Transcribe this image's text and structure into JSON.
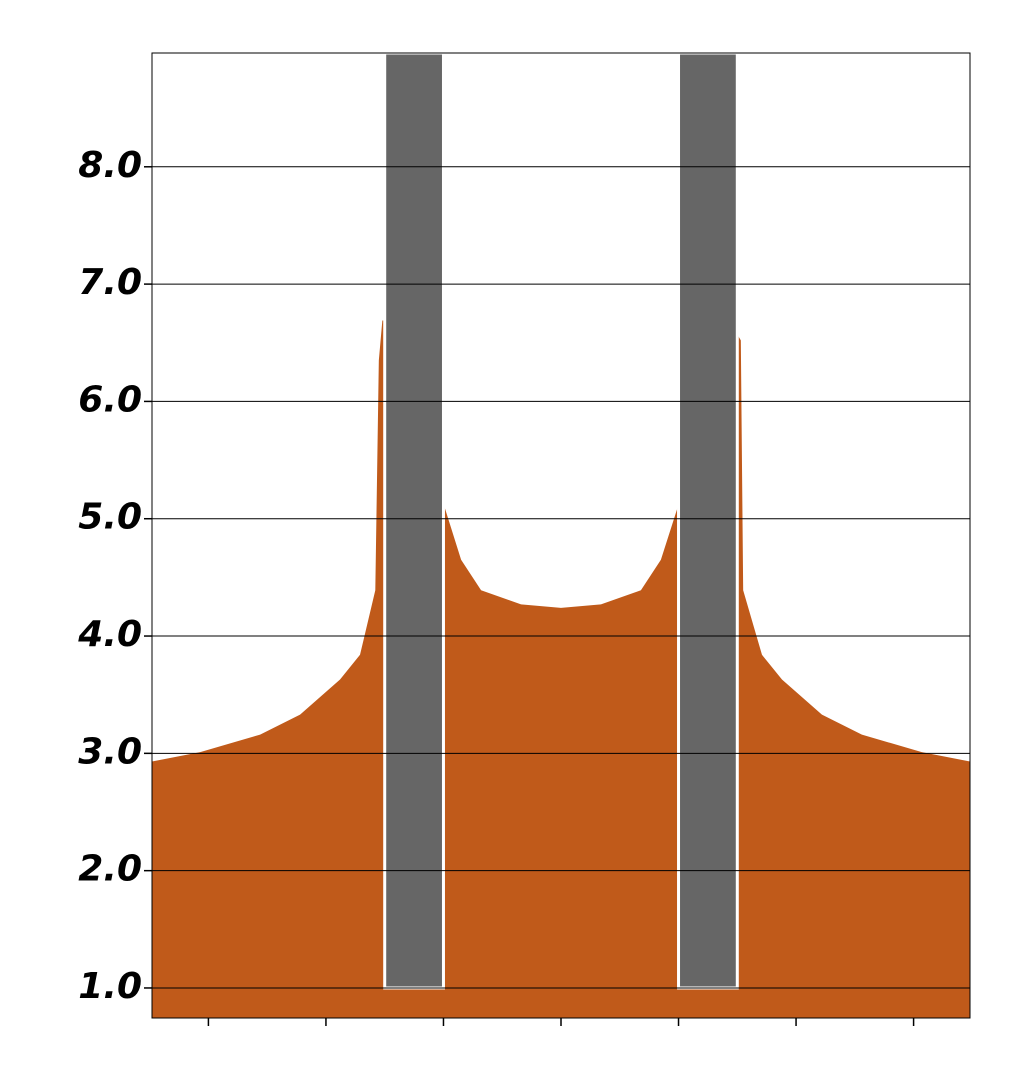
{
  "chart_data": {
    "type": "area",
    "x": [
      -3.48,
      -3.07,
      -2.56,
      -2.22,
      -1.88,
      -1.71,
      -1.58,
      -1.55,
      -1.52,
      -1.5,
      -1.01,
      -0.85,
      -0.68,
      -0.34,
      0,
      0.34,
      0.68,
      0.85,
      1.0,
      1.49,
      1.53,
      1.55,
      1.71,
      1.88,
      2.22,
      2.56,
      3.07,
      3.48
    ],
    "values": [
      2.93,
      3.01,
      3.16,
      3.33,
      3.63,
      3.84,
      4.39,
      6.35,
      6.69,
      6.69,
      5.16,
      4.65,
      4.39,
      4.27,
      4.24,
      4.27,
      4.39,
      4.65,
      5.12,
      6.59,
      6.52,
      4.39,
      3.84,
      3.63,
      3.33,
      3.16,
      3.01,
      2.93
    ],
    "color": "#c05a1a",
    "regions": [
      {
        "x": [
          -1.5,
          -1.0
        ],
        "y": [
          1.0,
          8.97
        ]
      },
      {
        "x": [
          1.0,
          1.5
        ],
        "y": [
          1.0,
          8.97
        ]
      }
    ],
    "region_color": "#666666",
    "xlim": [
      -3.48,
      3.48
    ],
    "xticks": [
      -3,
      -2,
      -1,
      0,
      1,
      2,
      3
    ],
    "ylim": [
      0.744,
      8.97
    ],
    "yticks": [
      {
        "value": 1,
        "label": "1.0"
      },
      {
        "value": 2,
        "label": "2.0"
      },
      {
        "value": 3,
        "label": "3.0"
      },
      {
        "value": 4,
        "label": "4.0"
      },
      {
        "value": 5,
        "label": "5.0"
      },
      {
        "value": 6,
        "label": "6.0"
      },
      {
        "value": 7,
        "label": "7.0"
      },
      {
        "value": 8,
        "label": "8.0"
      }
    ],
    "grid": true
  }
}
